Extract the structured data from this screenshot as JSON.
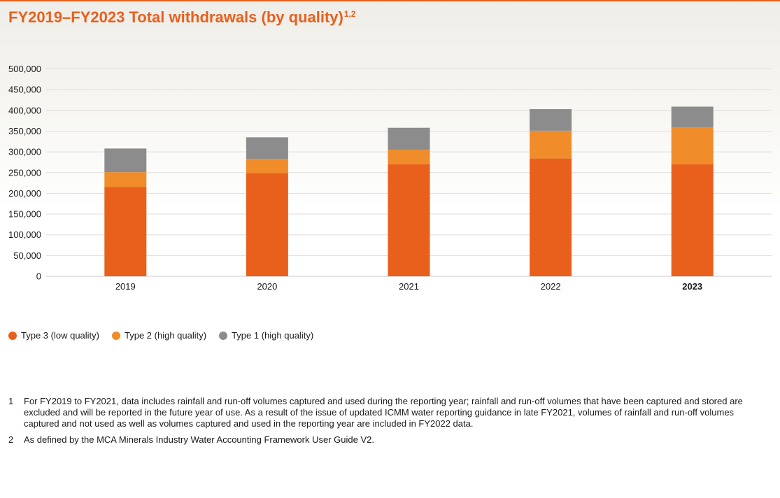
{
  "title": "FY2019–FY2023 Total withdrawals (by quality)",
  "title_superscript": "1,2",
  "chart_data": {
    "type": "bar",
    "stacked": true,
    "categories": [
      "2019",
      "2020",
      "2021",
      "2022",
      "2023"
    ],
    "highlighted_category": "2023",
    "series": [
      {
        "name": "Type 3 (low quality)",
        "color": "#e8601c",
        "values": [
          215000,
          249000,
          270000,
          284000,
          270000
        ]
      },
      {
        "name": "Type 2 (high quality)",
        "color": "#f08c2a",
        "values": [
          36000,
          34000,
          35000,
          67000,
          89000
        ]
      },
      {
        "name": "Type 1 (high quality)",
        "color": "#8c8c8c",
        "values": [
          57000,
          52000,
          53000,
          52000,
          50000
        ]
      }
    ],
    "ylim": [
      0,
      500000
    ],
    "yticks": [
      "0",
      "50,000",
      "100,000",
      "150,000",
      "200,000",
      "250,000",
      "300,000",
      "350,000",
      "400,000",
      "450,000",
      "500,000"
    ],
    "ytick_values": [
      0,
      50000,
      100000,
      150000,
      200000,
      250000,
      300000,
      350000,
      400000,
      450000,
      500000
    ],
    "grid": true,
    "legend_position": "bottom-left"
  },
  "footnotes": [
    {
      "number": "1",
      "text": "For FY2019 to FY2021, data includes rainfall and run-off volumes captured and used during the reporting year; rainfall and run-off volumes that have been captured and stored are excluded and will be reported in the future year of use. As a result of the issue of updated ICMM water reporting guidance in late FY2021, volumes of rainfall and run-off volumes captured and not used as well as volumes captured and used in the reporting year are included in FY2022 data."
    },
    {
      "number": "2",
      "text": "As defined by the MCA Minerals Industry Water Accounting Framework User Guide V2."
    }
  ]
}
